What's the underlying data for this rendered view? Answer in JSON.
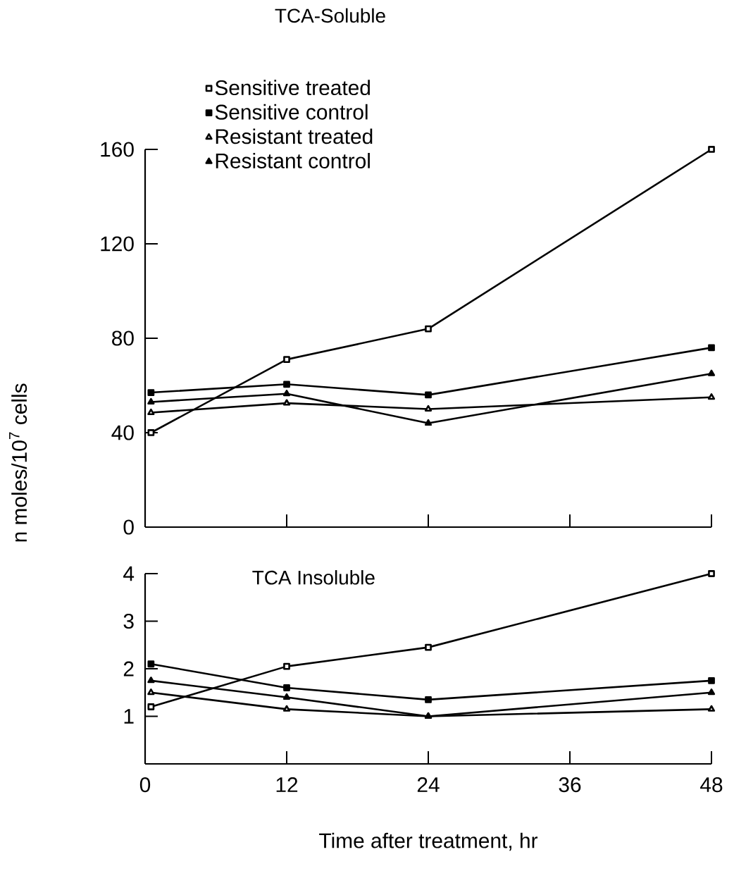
{
  "chart_data": [
    {
      "type": "line",
      "title": "TCA-Soluble",
      "ylabel": "n moles/10$^{7}$ cells",
      "x": [
        0.5,
        12,
        24,
        48
      ],
      "xlim": [
        0,
        48
      ],
      "ylim": [
        0,
        160
      ],
      "xticks": [
        12,
        24,
        36,
        48
      ],
      "yticks": [
        0,
        40,
        80,
        120,
        160
      ],
      "tick_labels": "y",
      "legend": "top",
      "line_style": "solid",
      "series": [
        {
          "name": "Sensitive treated",
          "color": "#000000",
          "marker": "square",
          "values": [
            40,
            71,
            84,
            160
          ]
        },
        {
          "name": "Sensitive control",
          "color": "#000000",
          "marker": "square*",
          "values": [
            57,
            60.5,
            56,
            76
          ]
        },
        {
          "name": "Resistant treated",
          "color": "#000000",
          "marker": "triangle",
          "values": [
            48.5,
            52.5,
            50,
            55
          ]
        },
        {
          "name": "Resistant control",
          "color": "#000000",
          "marker": "triangle*",
          "values": [
            53,
            56.5,
            44,
            65
          ]
        }
      ]
    },
    {
      "type": "line",
      "title": "TCA Insoluble",
      "xlabel": "Time after treatment,  hr",
      "x": [
        0.5,
        12,
        24,
        48
      ],
      "xlim": [
        0,
        48
      ],
      "ylim": [
        0,
        4
      ],
      "xticks": [
        0,
        12,
        24,
        36,
        48
      ],
      "yticks": [
        1,
        2,
        3,
        4
      ],
      "line_style": "solid",
      "series": [
        {
          "color": "#000000",
          "marker": "square",
          "values": [
            1.2,
            2.05,
            2.45,
            4
          ]
        },
        {
          "color": "#000000",
          "marker": "square*",
          "values": [
            2.1,
            1.6,
            1.35,
            1.75
          ]
        },
        {
          "color": "#000000",
          "marker": "triangle",
          "values": [
            1.5,
            1.15,
            1.0,
            1.15
          ]
        },
        {
          "color": "#000000",
          "marker": "triangle*",
          "values": [
            1.75,
            1.4,
            1.0,
            1.5
          ]
        }
      ]
    }
  ]
}
